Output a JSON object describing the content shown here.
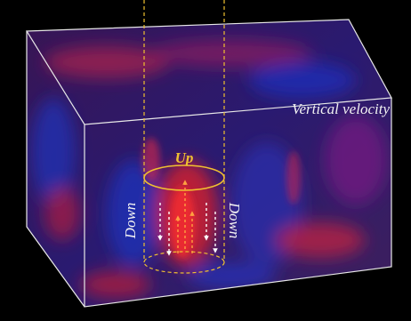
{
  "labels": {
    "field": "Vertical velocity",
    "up": "Up",
    "down_left": "Down",
    "down_right": "Down"
  }
}
